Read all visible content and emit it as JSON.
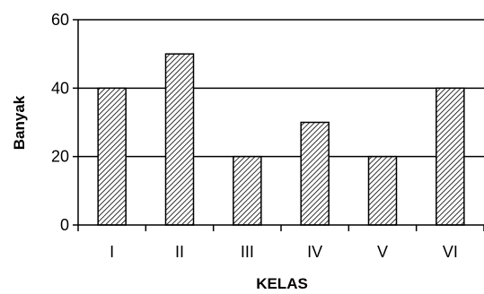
{
  "chart_data": {
    "type": "bar",
    "title": "",
    "xlabel": "KELAS",
    "ylabel": "Banyak",
    "categories": [
      "I",
      "II",
      "III",
      "IV",
      "V",
      "VI"
    ],
    "values": [
      40,
      50,
      20,
      30,
      20,
      40
    ],
    "ylim": [
      0,
      60
    ],
    "yticks": [
      0,
      20,
      40,
      60
    ],
    "grid": "horizontal",
    "legend": "none",
    "bar_fill": "diagonal-hatch",
    "colors": {
      "bar_stroke": "#000000",
      "hatch": "#000000",
      "background": "#ffffff"
    }
  }
}
